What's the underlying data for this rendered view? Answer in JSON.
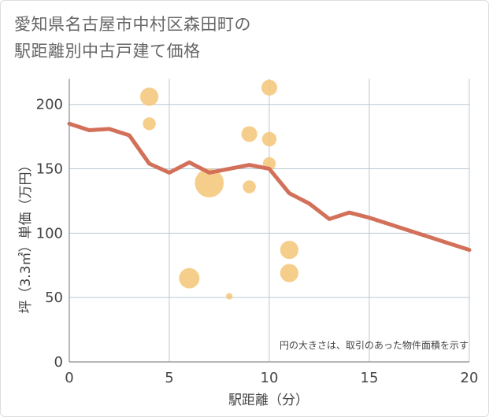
{
  "title_lines": [
    "愛知県名古屋市中村区森田町の",
    "駅距離別中古戸建て価格"
  ],
  "chart_data": {
    "type": "scatter",
    "title": "愛知県名古屋市中村区森田町の駅距離別中古戸建て価格",
    "xlabel": "駅距離（分）",
    "ylabel": "坪（3.3㎡）単価（万円）",
    "xlim": [
      0,
      20
    ],
    "ylim": [
      0,
      220
    ],
    "xticks": [
      0,
      5,
      10,
      15,
      20
    ],
    "yticks": [
      0,
      50,
      100,
      150,
      200
    ],
    "grid": true,
    "note": "円の大きさは、取引のあった物件面積を示す",
    "colors": {
      "bubble": "#f5c578",
      "line": "#d2705a",
      "grid": "#b9c8d2"
    },
    "points": [
      {
        "x": 4,
        "y": 206,
        "size": 4
      },
      {
        "x": 4,
        "y": 185,
        "size": 2
      },
      {
        "x": 6,
        "y": 65,
        "size": 5
      },
      {
        "x": 7,
        "y": 139,
        "size": 10
      },
      {
        "x": 8,
        "y": 51,
        "size": 0.5
      },
      {
        "x": 9,
        "y": 177,
        "size": 3
      },
      {
        "x": 9,
        "y": 136,
        "size": 2
      },
      {
        "x": 10,
        "y": 213,
        "size": 3
      },
      {
        "x": 10,
        "y": 173,
        "size": 2.5
      },
      {
        "x": 10,
        "y": 154,
        "size": 2
      },
      {
        "x": 11,
        "y": 87,
        "size": 4
      },
      {
        "x": 11,
        "y": 69,
        "size": 4
      }
    ],
    "trend": {
      "x": [
        0,
        1,
        2,
        3,
        4,
        5,
        6,
        7,
        8,
        9,
        10,
        11,
        12,
        13,
        14,
        15,
        16,
        17,
        18,
        19,
        20
      ],
      "y": [
        185,
        180,
        181,
        176,
        154,
        147,
        155,
        147,
        150,
        153,
        150,
        131,
        123,
        111,
        116,
        112,
        107,
        102,
        97,
        92,
        87
      ]
    }
  }
}
